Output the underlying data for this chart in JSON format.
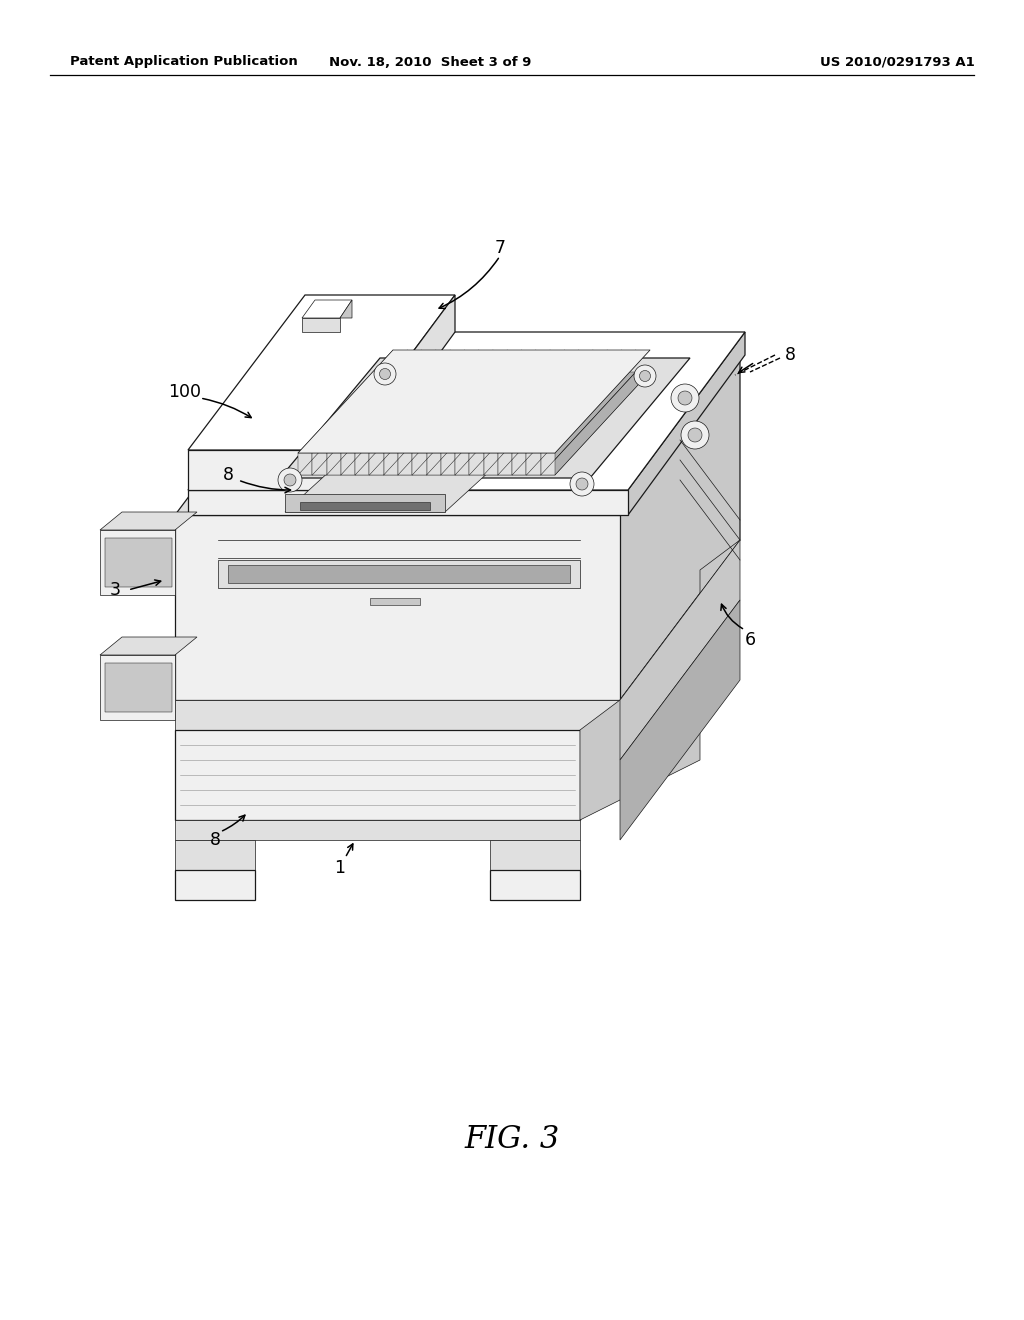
{
  "background_color": "#ffffff",
  "header_left": "Patent Application Publication",
  "header_center": "Nov. 18, 2010  Sheet 3 of 9",
  "header_right": "US 2010/0291793 A1",
  "figure_label": "FIG. 3",
  "lc": "#1a1a1a",
  "lw": 0.9,
  "lw_thin": 0.5,
  "fill_white": "#ffffff",
  "fill_light": "#f0f0f0",
  "fill_mid": "#e0e0e0",
  "fill_dark": "#c8c8c8",
  "fill_darker": "#b0b0b0",
  "fill_slot": "#888888"
}
